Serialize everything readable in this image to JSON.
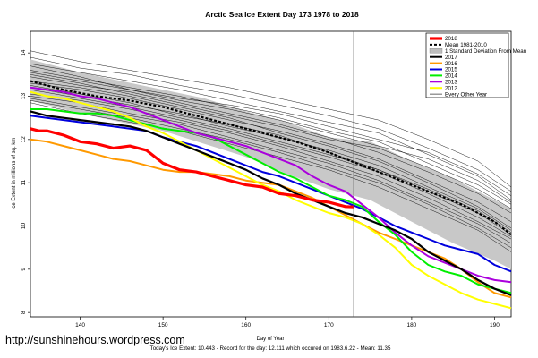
{
  "chart_data": {
    "type": "line",
    "title": "Arctic Sea Ice Extent Day 173 1978 to 2018",
    "xlabel": "Day of Year",
    "ylabel": "Ice Extent in millions of sq. km",
    "xlim": [
      134,
      192
    ],
    "ylim": [
      7.9,
      14.5
    ],
    "xticks": [
      140,
      150,
      160,
      170,
      180,
      190
    ],
    "yticks": [
      8,
      9,
      10,
      11,
      12,
      13,
      14
    ],
    "marker_day": 173,
    "grid": false,
    "legend_position": "top-right",
    "legend": [
      {
        "label": "2018",
        "color": "#ff0000",
        "style": "solid-thick"
      },
      {
        "label": "Mean 1981-2010",
        "color": "#000000",
        "style": "dashed"
      },
      {
        "label": "1 Standard Deviation From Mean",
        "color": "#bdbdbd",
        "style": "band"
      },
      {
        "label": "2017",
        "color": "#000000",
        "style": "solid"
      },
      {
        "label": "2016",
        "color": "#ff9900",
        "style": "solid"
      },
      {
        "label": "2015",
        "color": "#0000dd",
        "style": "solid"
      },
      {
        "label": "2014",
        "color": "#00ee00",
        "style": "solid"
      },
      {
        "label": "2013",
        "color": "#aa00dd",
        "style": "solid"
      },
      {
        "label": "2012",
        "color": "#ffff00",
        "style": "solid"
      },
      {
        "label": "Every Other Year",
        "color": "#000000",
        "style": "thin"
      }
    ],
    "band": {
      "x": [
        134,
        140,
        145,
        150,
        155,
        160,
        165,
        170,
        175,
        180,
        185,
        190,
        192
      ],
      "lower": [
        12.9,
        12.6,
        12.4,
        12.2,
        11.9,
        11.6,
        11.2,
        10.85,
        10.6,
        10.1,
        9.6,
        9.2,
        9.0
      ],
      "upper": [
        13.85,
        13.55,
        13.35,
        13.15,
        12.95,
        12.65,
        12.4,
        12.05,
        11.95,
        11.5,
        11.1,
        10.6,
        10.4
      ]
    },
    "series": [
      {
        "name": "Mean 1981-2010",
        "color": "#000000",
        "width": 2.2,
        "dash": "3,2",
        "x": [
          134,
          138,
          142,
          146,
          150,
          154,
          158,
          162,
          166,
          170,
          174,
          178,
          182,
          186,
          190,
          192
        ],
        "y": [
          13.35,
          13.15,
          13.0,
          12.9,
          12.75,
          12.55,
          12.35,
          12.15,
          11.95,
          11.7,
          11.4,
          11.1,
          10.8,
          10.5,
          10.1,
          9.8
        ]
      },
      {
        "name": "2016",
        "color": "#ff9900",
        "width": 2,
        "x": [
          134,
          136,
          138,
          140,
          142,
          144,
          146,
          148,
          150,
          152,
          154,
          156,
          158,
          160,
          162,
          164,
          166,
          168,
          170,
          172,
          174,
          176,
          178,
          180,
          182,
          184,
          186,
          188,
          190,
          192
        ],
        "y": [
          12.0,
          11.95,
          11.85,
          11.75,
          11.65,
          11.55,
          11.5,
          11.4,
          11.3,
          11.25,
          11.25,
          11.2,
          11.15,
          11.05,
          11.0,
          10.95,
          10.8,
          10.65,
          10.45,
          10.25,
          10.05,
          9.85,
          9.7,
          9.55,
          9.4,
          9.25,
          9.0,
          8.7,
          8.45,
          8.35
        ]
      },
      {
        "name": "2015",
        "color": "#0000dd",
        "width": 2,
        "x": [
          134,
          136,
          138,
          140,
          142,
          144,
          146,
          148,
          150,
          152,
          154,
          156,
          158,
          160,
          162,
          164,
          166,
          168,
          170,
          172,
          174,
          176,
          178,
          180,
          182,
          184,
          186,
          188,
          190,
          192
        ],
        "y": [
          12.55,
          12.5,
          12.45,
          12.4,
          12.35,
          12.3,
          12.25,
          12.2,
          12.05,
          11.95,
          11.85,
          11.7,
          11.55,
          11.4,
          11.25,
          11.15,
          11.0,
          10.85,
          10.7,
          10.55,
          10.4,
          10.2,
          10.0,
          9.85,
          9.7,
          9.55,
          9.45,
          9.35,
          9.1,
          8.95
        ]
      },
      {
        "name": "2014",
        "color": "#00ee00",
        "width": 2,
        "x": [
          134,
          136,
          138,
          140,
          142,
          144,
          146,
          148,
          150,
          152,
          154,
          156,
          158,
          160,
          162,
          164,
          166,
          168,
          170,
          172,
          174,
          176,
          178,
          180,
          182,
          184,
          186,
          188,
          190,
          192
        ],
        "y": [
          12.7,
          12.7,
          12.65,
          12.6,
          12.6,
          12.55,
          12.45,
          12.35,
          12.25,
          12.2,
          12.15,
          12.05,
          11.85,
          11.65,
          11.45,
          11.25,
          11.1,
          10.9,
          10.7,
          10.6,
          10.45,
          10.1,
          9.8,
          9.4,
          9.1,
          8.95,
          8.85,
          8.65,
          8.55,
          8.45
        ]
      },
      {
        "name": "2013",
        "color": "#aa00dd",
        "width": 2,
        "x": [
          134,
          136,
          138,
          140,
          142,
          144,
          146,
          148,
          150,
          152,
          154,
          156,
          158,
          160,
          162,
          164,
          166,
          168,
          170,
          172,
          174,
          176,
          178,
          180,
          182,
          184,
          186,
          188,
          190,
          192
        ],
        "y": [
          13.2,
          13.15,
          13.1,
          13.0,
          12.95,
          12.85,
          12.75,
          12.6,
          12.45,
          12.3,
          12.15,
          12.05,
          11.95,
          11.85,
          11.7,
          11.55,
          11.4,
          11.15,
          10.95,
          10.8,
          10.5,
          10.2,
          9.85,
          9.55,
          9.3,
          9.15,
          9.0,
          8.85,
          8.75,
          8.7
        ]
      },
      {
        "name": "2012",
        "color": "#ffff00",
        "width": 2,
        "x": [
          134,
          136,
          138,
          140,
          142,
          144,
          146,
          148,
          150,
          152,
          154,
          156,
          158,
          160,
          162,
          164,
          166,
          168,
          170,
          172,
          174,
          176,
          178,
          180,
          182,
          184,
          186,
          188,
          190,
          192
        ],
        "y": [
          13.1,
          13.0,
          12.95,
          12.85,
          12.75,
          12.65,
          12.5,
          12.3,
          12.15,
          11.95,
          11.75,
          11.55,
          11.35,
          11.15,
          10.95,
          10.8,
          10.6,
          10.45,
          10.3,
          10.2,
          10.05,
          9.8,
          9.5,
          9.1,
          8.85,
          8.65,
          8.45,
          8.3,
          8.2,
          8.1
        ]
      },
      {
        "name": "2017",
        "color": "#000000",
        "width": 2.2,
        "x": [
          134,
          136,
          138,
          140,
          142,
          144,
          146,
          148,
          150,
          152,
          154,
          156,
          158,
          160,
          162,
          164,
          166,
          168,
          170,
          172,
          174,
          176,
          178,
          180,
          182,
          184,
          186,
          188,
          190,
          192
        ],
        "y": [
          12.65,
          12.55,
          12.5,
          12.45,
          12.4,
          12.35,
          12.3,
          12.2,
          12.05,
          11.9,
          11.75,
          11.6,
          11.45,
          11.3,
          11.1,
          10.95,
          10.75,
          10.6,
          10.45,
          10.3,
          10.2,
          10.05,
          9.9,
          9.7,
          9.4,
          9.2,
          9.0,
          8.75,
          8.55,
          8.4
        ]
      },
      {
        "name": "2018",
        "color": "#ff0000",
        "width": 3.2,
        "x": [
          134,
          135,
          136,
          138,
          140,
          142,
          144,
          146,
          148,
          150,
          152,
          154,
          156,
          158,
          160,
          162,
          164,
          166,
          168,
          170,
          172,
          173
        ],
        "y": [
          12.25,
          12.2,
          12.2,
          12.1,
          11.95,
          11.9,
          11.8,
          11.85,
          11.75,
          11.45,
          11.3,
          11.25,
          11.15,
          11.05,
          10.95,
          10.9,
          10.75,
          10.7,
          10.6,
          10.55,
          10.45,
          10.44
        ]
      }
    ],
    "other_years": [
      {
        "x": [
          134,
          140,
          146,
          152,
          158,
          164,
          170,
          176,
          182,
          188,
          192
        ],
        "y": [
          14.05,
          13.8,
          13.6,
          13.4,
          13.2,
          12.95,
          12.7,
          12.45,
          12.0,
          11.5,
          10.9
        ]
      },
      {
        "x": [
          134,
          140,
          146,
          152,
          158,
          164,
          170,
          176,
          182,
          188,
          192
        ],
        "y": [
          13.9,
          13.65,
          13.5,
          13.25,
          13.05,
          12.8,
          12.55,
          12.25,
          11.8,
          11.3,
          10.8
        ]
      },
      {
        "x": [
          134,
          140,
          146,
          152,
          158,
          164,
          170,
          176,
          182,
          188,
          192
        ],
        "y": [
          13.75,
          13.55,
          13.35,
          13.15,
          12.9,
          12.65,
          12.4,
          12.15,
          11.65,
          11.15,
          10.6
        ]
      },
      {
        "x": [
          134,
          140,
          146,
          152,
          158,
          164,
          170,
          176,
          182,
          188,
          192
        ],
        "y": [
          13.6,
          13.4,
          13.2,
          13.0,
          12.75,
          12.5,
          12.2,
          11.95,
          11.45,
          10.95,
          10.5
        ]
      },
      {
        "x": [
          134,
          140,
          146,
          152,
          158,
          164,
          170,
          176,
          182,
          188,
          192
        ],
        "y": [
          13.45,
          13.25,
          13.1,
          12.85,
          12.6,
          12.35,
          12.05,
          11.7,
          11.25,
          10.75,
          10.3
        ]
      },
      {
        "x": [
          134,
          140,
          146,
          152,
          158,
          164,
          170,
          176,
          182,
          188,
          192
        ],
        "y": [
          13.3,
          13.15,
          12.95,
          12.7,
          12.45,
          12.2,
          11.9,
          11.55,
          11.05,
          10.55,
          10.1
        ]
      },
      {
        "x": [
          134,
          140,
          146,
          152,
          158,
          164,
          170,
          176,
          182,
          188,
          192
        ],
        "y": [
          13.2,
          13.0,
          12.8,
          12.6,
          12.3,
          12.05,
          11.75,
          11.4,
          10.9,
          10.4,
          9.9
        ]
      },
      {
        "x": [
          134,
          140,
          146,
          152,
          158,
          164,
          170,
          176,
          182,
          188,
          192
        ],
        "y": [
          13.05,
          12.9,
          12.7,
          12.45,
          12.2,
          11.9,
          11.6,
          11.25,
          10.75,
          10.2,
          9.75
        ]
      },
      {
        "x": [
          134,
          140,
          146,
          152,
          158,
          164,
          170,
          176,
          182,
          188,
          192
        ],
        "y": [
          12.95,
          12.75,
          12.55,
          12.35,
          12.05,
          11.75,
          11.45,
          11.05,
          10.55,
          10.05,
          9.6
        ]
      },
      {
        "x": [
          134,
          140,
          146,
          152,
          158,
          164,
          170,
          176,
          182,
          188,
          192
        ],
        "y": [
          12.85,
          12.6,
          12.4,
          12.2,
          11.9,
          11.6,
          11.3,
          10.9,
          10.4,
          9.9,
          9.4
        ]
      },
      {
        "x": [
          134,
          140,
          146,
          152,
          158,
          164,
          170,
          176,
          182,
          188,
          192
        ],
        "y": [
          13.7,
          13.45,
          13.15,
          12.95,
          12.8,
          12.6,
          12.3,
          12.0,
          11.7,
          11.2,
          10.7
        ]
      },
      {
        "x": [
          134,
          140,
          146,
          152,
          158,
          164,
          170,
          176,
          182,
          188,
          192
        ],
        "y": [
          13.5,
          13.3,
          13.05,
          12.8,
          12.55,
          12.3,
          12.0,
          11.8,
          11.35,
          10.85,
          10.4
        ]
      },
      {
        "x": [
          134,
          140,
          146,
          152,
          158,
          164,
          170,
          176,
          182,
          188,
          192
        ],
        "y": [
          13.35,
          13.2,
          13.0,
          12.75,
          12.5,
          12.15,
          11.85,
          11.5,
          11.0,
          10.45,
          9.95
        ]
      },
      {
        "x": [
          134,
          140,
          146,
          152,
          158,
          164,
          170,
          176,
          182,
          188,
          192
        ],
        "y": [
          13.0,
          12.85,
          12.6,
          12.4,
          12.15,
          11.85,
          11.5,
          11.15,
          10.65,
          10.1,
          9.7
        ]
      },
      {
        "x": [
          134,
          140,
          146,
          152,
          158,
          164,
          170,
          176,
          182,
          188,
          192
        ],
        "y": [
          12.9,
          12.7,
          12.5,
          12.25,
          12.0,
          11.7,
          11.35,
          11.0,
          10.5,
          9.95,
          9.5
        ]
      },
      {
        "x": [
          134,
          140,
          146,
          152,
          158,
          164,
          170,
          176,
          182,
          188,
          192
        ],
        "y": [
          13.25,
          13.05,
          12.85,
          12.55,
          12.35,
          12.1,
          11.7,
          11.3,
          10.85,
          10.35,
          9.85
        ]
      },
      {
        "x": [
          134,
          140,
          146,
          152,
          158,
          164,
          170,
          176,
          182,
          188,
          192
        ],
        "y": [
          13.55,
          13.35,
          13.15,
          12.9,
          12.7,
          12.45,
          12.15,
          11.85,
          11.55,
          11.05,
          10.55
        ]
      },
      {
        "x": [
          134,
          140,
          146,
          152,
          158,
          164,
          170,
          176,
          182,
          188,
          192
        ],
        "y": [
          13.15,
          12.95,
          12.75,
          12.5,
          12.25,
          11.95,
          11.65,
          11.3,
          10.8,
          10.3,
          9.8
        ]
      }
    ]
  },
  "footer": {
    "url": "http://sunshinehours.wordpress.com",
    "summary": "Today's Ice Extent: 10.443 - Record for the day: 12.111 which occured on 1983.6.22 - Mean: 11.35"
  }
}
